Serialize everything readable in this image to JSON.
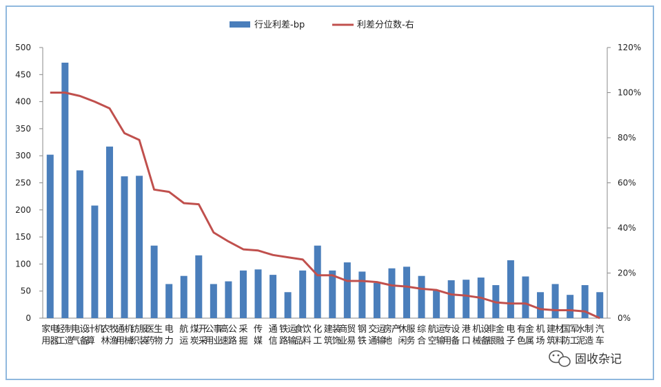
{
  "chart_data": {
    "type": "bar",
    "categories": [
      "家用电器",
      "轻工制造",
      "电气设备",
      "计算机",
      "农林牧渔",
      "通用机械",
      "纺织服装",
      "医药生物",
      "电力",
      "航运",
      "煤炭开采",
      "公用事业",
      "高速公路",
      "采掘",
      "传媒",
      "通信",
      "铁路运输",
      "食品饮料",
      "化工",
      "建筑装饰",
      "商业贸易",
      "钢铁",
      "交通运输",
      "房地产",
      "休闲服务",
      "综合",
      "航空运输",
      "专用设备",
      "港口",
      "机械设备",
      "非银金融",
      "电子",
      "有色金属",
      "机场",
      "建筑材料",
      "国防军工",
      "水泥制造",
      "汽车"
    ],
    "series": [
      {
        "name": "行业利差-bp",
        "type": "bar",
        "axis": "left",
        "color": "#4a7ebb",
        "values": [
          302,
          472,
          273,
          208,
          317,
          262,
          263,
          134,
          63,
          78,
          116,
          63,
          68,
          88,
          90,
          80,
          48,
          88,
          134,
          88,
          103,
          86,
          65,
          92,
          95,
          78,
          52,
          70,
          71,
          75,
          61,
          107,
          77,
          48,
          63,
          43,
          61,
          48
        ]
      },
      {
        "name": "利差分位数-右",
        "type": "line",
        "axis": "right",
        "color": "#c0504d",
        "values": [
          100,
          100,
          98.5,
          96,
          93,
          82,
          79,
          57,
          56,
          51,
          50.5,
          38,
          34,
          30.5,
          30,
          28,
          27,
          26,
          19,
          19,
          16.5,
          16.5,
          16,
          14.5,
          14,
          13,
          12.5,
          10.5,
          10,
          9,
          7,
          6.5,
          6.5,
          4,
          3.5,
          3.5,
          3,
          0
        ]
      }
    ],
    "y_left": {
      "min": 0,
      "max": 500,
      "step": 50,
      "ticks": [
        "0",
        "50",
        "100",
        "150",
        "200",
        "250",
        "300",
        "350",
        "400",
        "450",
        "500"
      ]
    },
    "y_right": {
      "min": 0,
      "max": 120,
      "step": 20,
      "ticks": [
        "0%",
        "20%",
        "40%",
        "60%",
        "80%",
        "100%",
        "120%"
      ]
    },
    "grid": false,
    "legend_position": "top-center"
  },
  "watermark": {
    "text": "固收杂记",
    "icon": "wechat-icon"
  }
}
